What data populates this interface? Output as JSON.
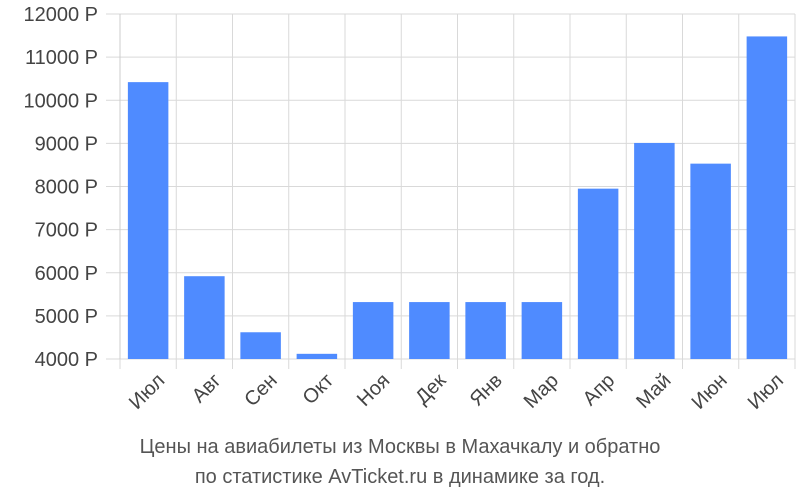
{
  "chart_data": {
    "type": "bar",
    "categories": [
      "Июл",
      "Авг",
      "Сен",
      "Окт",
      "Ноя",
      "Дек",
      "Янв",
      "Мар",
      "Апр",
      "Май",
      "Июн",
      "Июл"
    ],
    "values": [
      10420,
      5920,
      4620,
      4120,
      5320,
      5320,
      5320,
      5320,
      7950,
      9010,
      8530,
      11480
    ],
    "ylim": [
      4000,
      12000
    ],
    "yticks": [
      4000,
      5000,
      6000,
      7000,
      8000,
      9000,
      10000,
      11000,
      12000
    ],
    "ytick_labels": [
      "4000 Р",
      "5000 Р",
      "6000 Р",
      "7000 Р",
      "8000 Р",
      "9000 Р",
      "10000 Р",
      "11000 Р",
      "12000 Р"
    ],
    "grid": true,
    "bar_color": "#4f8bff",
    "grid_color": "#d9d9d9",
    "caption_line1": "Цены на авиабилеты из Москвы в Махачкалу и обратно",
    "caption_line2": "по статистике AvTicket.ru в динамике за год."
  }
}
